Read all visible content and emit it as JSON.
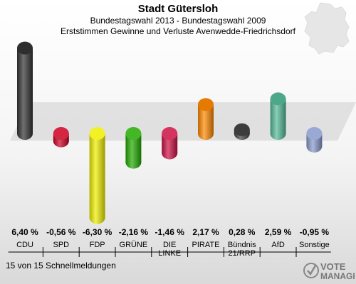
{
  "header": {
    "title": "Stadt Gütersloh",
    "subtitle1": "Bundestagswahl 2013 - Bundestagswahl 2009",
    "subtitle2": "Erststimmen Gewinne und Verluste Avenwedde-Friedrichsdorf"
  },
  "footer": {
    "text": "15 von 15 Schnellmeldungen"
  },
  "logo": {
    "text1": "VOTE",
    "text2": "MANAGER"
  },
  "chart_data": {
    "type": "bar",
    "title": "Erststimmen Gewinne und Verluste Avenwedde-Friedrichsdorf",
    "categories": [
      [
        "CDU"
      ],
      [
        "SPD"
      ],
      [
        "FDP"
      ],
      [
        "GRÜNE"
      ],
      [
        "DIE",
        "LINKE"
      ],
      [
        "PIRATE"
      ],
      [
        "Bündnis",
        "21/RRP"
      ],
      [
        "AfD"
      ],
      [
        "Sonstige"
      ]
    ],
    "values": [
      6.4,
      -0.56,
      -6.3,
      -2.16,
      -1.46,
      2.17,
      0.28,
      2.59,
      -0.95
    ],
    "value_labels": [
      "6,40 %",
      "-0,56 %",
      "-6,30 %",
      "-2,16 %",
      "-1,46 %",
      "2,17 %",
      "0,28 %",
      "2,59 %",
      "-0,95 %"
    ],
    "colors": [
      "#333333",
      "#cc0022",
      "#eeee00",
      "#22aa00",
      "#cc1144",
      "#ff8800",
      "#444444",
      "#55bb99",
      "#8899cc"
    ],
    "ylabel": "",
    "xlabel": ""
  }
}
